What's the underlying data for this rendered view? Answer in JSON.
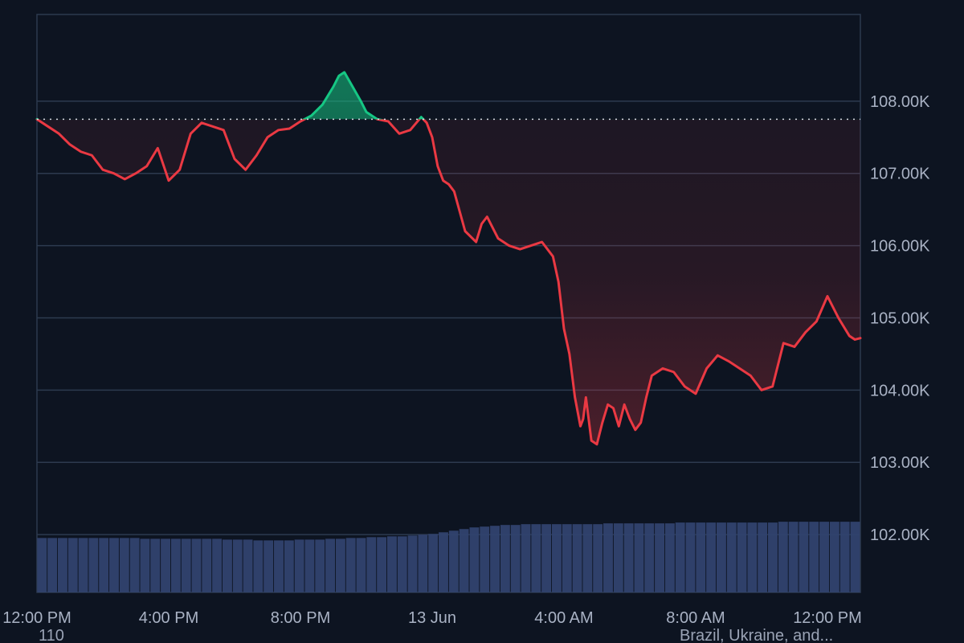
{
  "chart_data": {
    "type": "area",
    "colors": {
      "background": "#0d1421",
      "grid": "#2d3a4f",
      "up": "#16c784",
      "down": "#ea3943",
      "volume": "#32426f",
      "baseline": "#dfe4ec",
      "text": "#a9b2c4"
    },
    "baseline_value": 107.75,
    "ylim": [
      101.2,
      109.2
    ],
    "grid": true,
    "y_axis_position": "right",
    "y_ticks": [
      {
        "value": 108,
        "label": "108.00K"
      },
      {
        "value": 107,
        "label": "107.00K"
      },
      {
        "value": 106,
        "label": "106.00K"
      },
      {
        "value": 105,
        "label": "105.00K"
      },
      {
        "value": 104,
        "label": "104.00K"
      },
      {
        "value": 103,
        "label": "103.00K"
      },
      {
        "value": 102,
        "label": "102.00K"
      }
    ],
    "x_ticks": [
      {
        "label": "12:00 PM",
        "value": 0
      },
      {
        "label": "4:00 PM",
        "value": 240
      },
      {
        "label": "8:00 PM",
        "value": 480
      },
      {
        "label": "13 Jun",
        "value": 720
      },
      {
        "label": "4:00 AM",
        "value": 960
      },
      {
        "label": "8:00 AM",
        "value": 1200
      },
      {
        "label": "12:00 PM",
        "value": 1440
      }
    ],
    "xlim": [
      0,
      1500
    ],
    "price_series": {
      "x": [
        0,
        20,
        40,
        60,
        80,
        100,
        120,
        140,
        160,
        180,
        200,
        220,
        240,
        260,
        280,
        300,
        320,
        340,
        360,
        380,
        400,
        420,
        440,
        460,
        480,
        500,
        520,
        540,
        550,
        560,
        575,
        590,
        600,
        620,
        640,
        660,
        680,
        700,
        710,
        720,
        730,
        740,
        750,
        760,
        780,
        800,
        810,
        820,
        840,
        860,
        880,
        900,
        920,
        940,
        950,
        960,
        970,
        975,
        980,
        985,
        990,
        995,
        1000,
        1010,
        1020,
        1030,
        1040,
        1050,
        1060,
        1070,
        1080,
        1090,
        1100,
        1110,
        1120,
        1140,
        1160,
        1180,
        1200,
        1220,
        1240,
        1260,
        1280,
        1300,
        1320,
        1340,
        1360,
        1380,
        1400,
        1420,
        1440,
        1460,
        1480,
        1490,
        1500
      ],
      "y": [
        107.75,
        107.65,
        107.55,
        107.4,
        107.3,
        107.25,
        107.05,
        107.0,
        106.92,
        107.0,
        107.1,
        107.35,
        106.9,
        107.05,
        107.55,
        107.7,
        107.65,
        107.6,
        107.2,
        107.05,
        107.25,
        107.5,
        107.6,
        107.62,
        107.72,
        107.8,
        107.95,
        108.2,
        108.35,
        108.4,
        108.2,
        108.0,
        107.85,
        107.75,
        107.72,
        107.55,
        107.6,
        107.78,
        107.7,
        107.5,
        107.1,
        106.9,
        106.85,
        106.75,
        106.2,
        106.05,
        106.3,
        106.4,
        106.1,
        106.0,
        105.95,
        106.0,
        106.05,
        105.85,
        105.5,
        104.85,
        104.5,
        104.2,
        103.9,
        103.7,
        103.5,
        103.6,
        103.9,
        103.3,
        103.25,
        103.55,
        103.8,
        103.75,
        103.5,
        103.8,
        103.6,
        103.45,
        103.55,
        103.9,
        104.2,
        104.3,
        104.25,
        104.05,
        103.95,
        104.3,
        104.48,
        104.4,
        104.3,
        104.2,
        104.0,
        104.05,
        104.65,
        104.6,
        104.8,
        104.95,
        105.3,
        105.0,
        104.75,
        104.7,
        104.72
      ]
    },
    "volume_levels": [
      0.67,
      0.67,
      0.67,
      0.67,
      0.67,
      0.67,
      0.67,
      0.67,
      0.67,
      0.67,
      0.66,
      0.66,
      0.66,
      0.66,
      0.66,
      0.66,
      0.66,
      0.66,
      0.65,
      0.65,
      0.65,
      0.64,
      0.64,
      0.64,
      0.64,
      0.65,
      0.65,
      0.65,
      0.66,
      0.66,
      0.67,
      0.67,
      0.68,
      0.68,
      0.69,
      0.69,
      0.7,
      0.71,
      0.72,
      0.74,
      0.76,
      0.78,
      0.8,
      0.81,
      0.82,
      0.83,
      0.83,
      0.84,
      0.84,
      0.84,
      0.84,
      0.84,
      0.84,
      0.84,
      0.84,
      0.85,
      0.85,
      0.85,
      0.85,
      0.85,
      0.85,
      0.85,
      0.86,
      0.86,
      0.86,
      0.86,
      0.86,
      0.86,
      0.86,
      0.86,
      0.86,
      0.86,
      0.87,
      0.87,
      0.87,
      0.87,
      0.87,
      0.87,
      0.87,
      0.87
    ],
    "footer": {
      "left": "110",
      "right": "Brazil, Ukraine, and..."
    }
  }
}
